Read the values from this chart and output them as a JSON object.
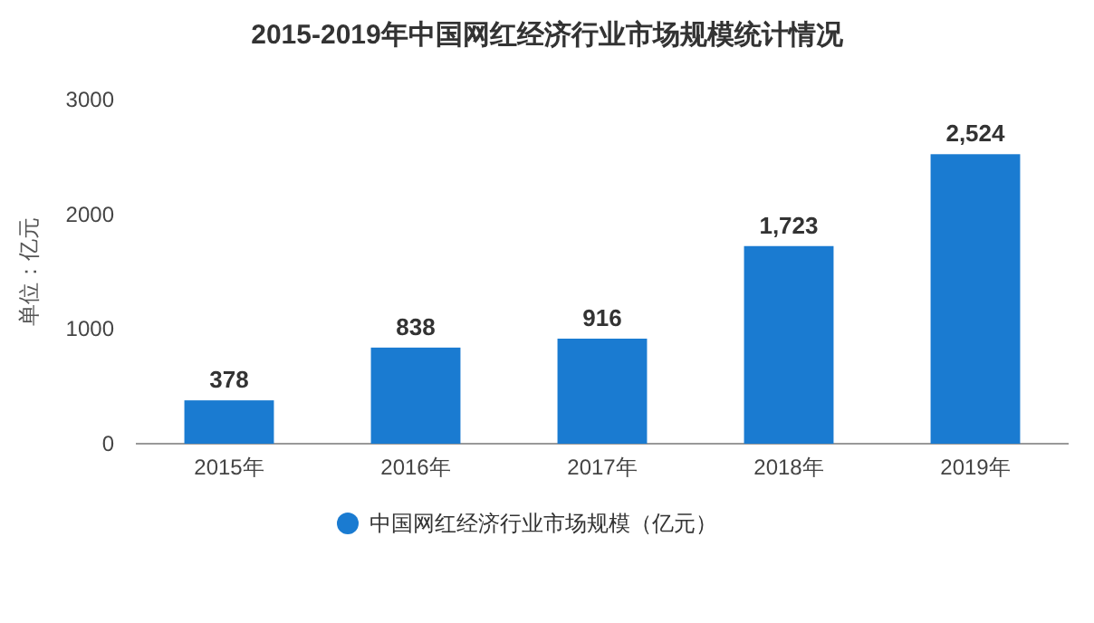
{
  "chart_data": {
    "type": "bar",
    "title": "2015-2019年中国网红经济行业市场规模统计情况",
    "ylabel": "单位：亿元",
    "categories": [
      "2015年",
      "2016年",
      "2017年",
      "2018年",
      "2019年"
    ],
    "series": [
      {
        "name": "中国网红经济行业市场规模（亿元）",
        "color": "#1a7bd1",
        "values": [
          378,
          838,
          916,
          1723,
          2524
        ],
        "value_labels": [
          "378",
          "838",
          "916",
          "1,723",
          "2,524"
        ]
      }
    ],
    "ylim": [
      0,
      3000
    ],
    "yticks": [
      0,
      1000,
      2000,
      3000
    ],
    "legend": "bottom"
  }
}
